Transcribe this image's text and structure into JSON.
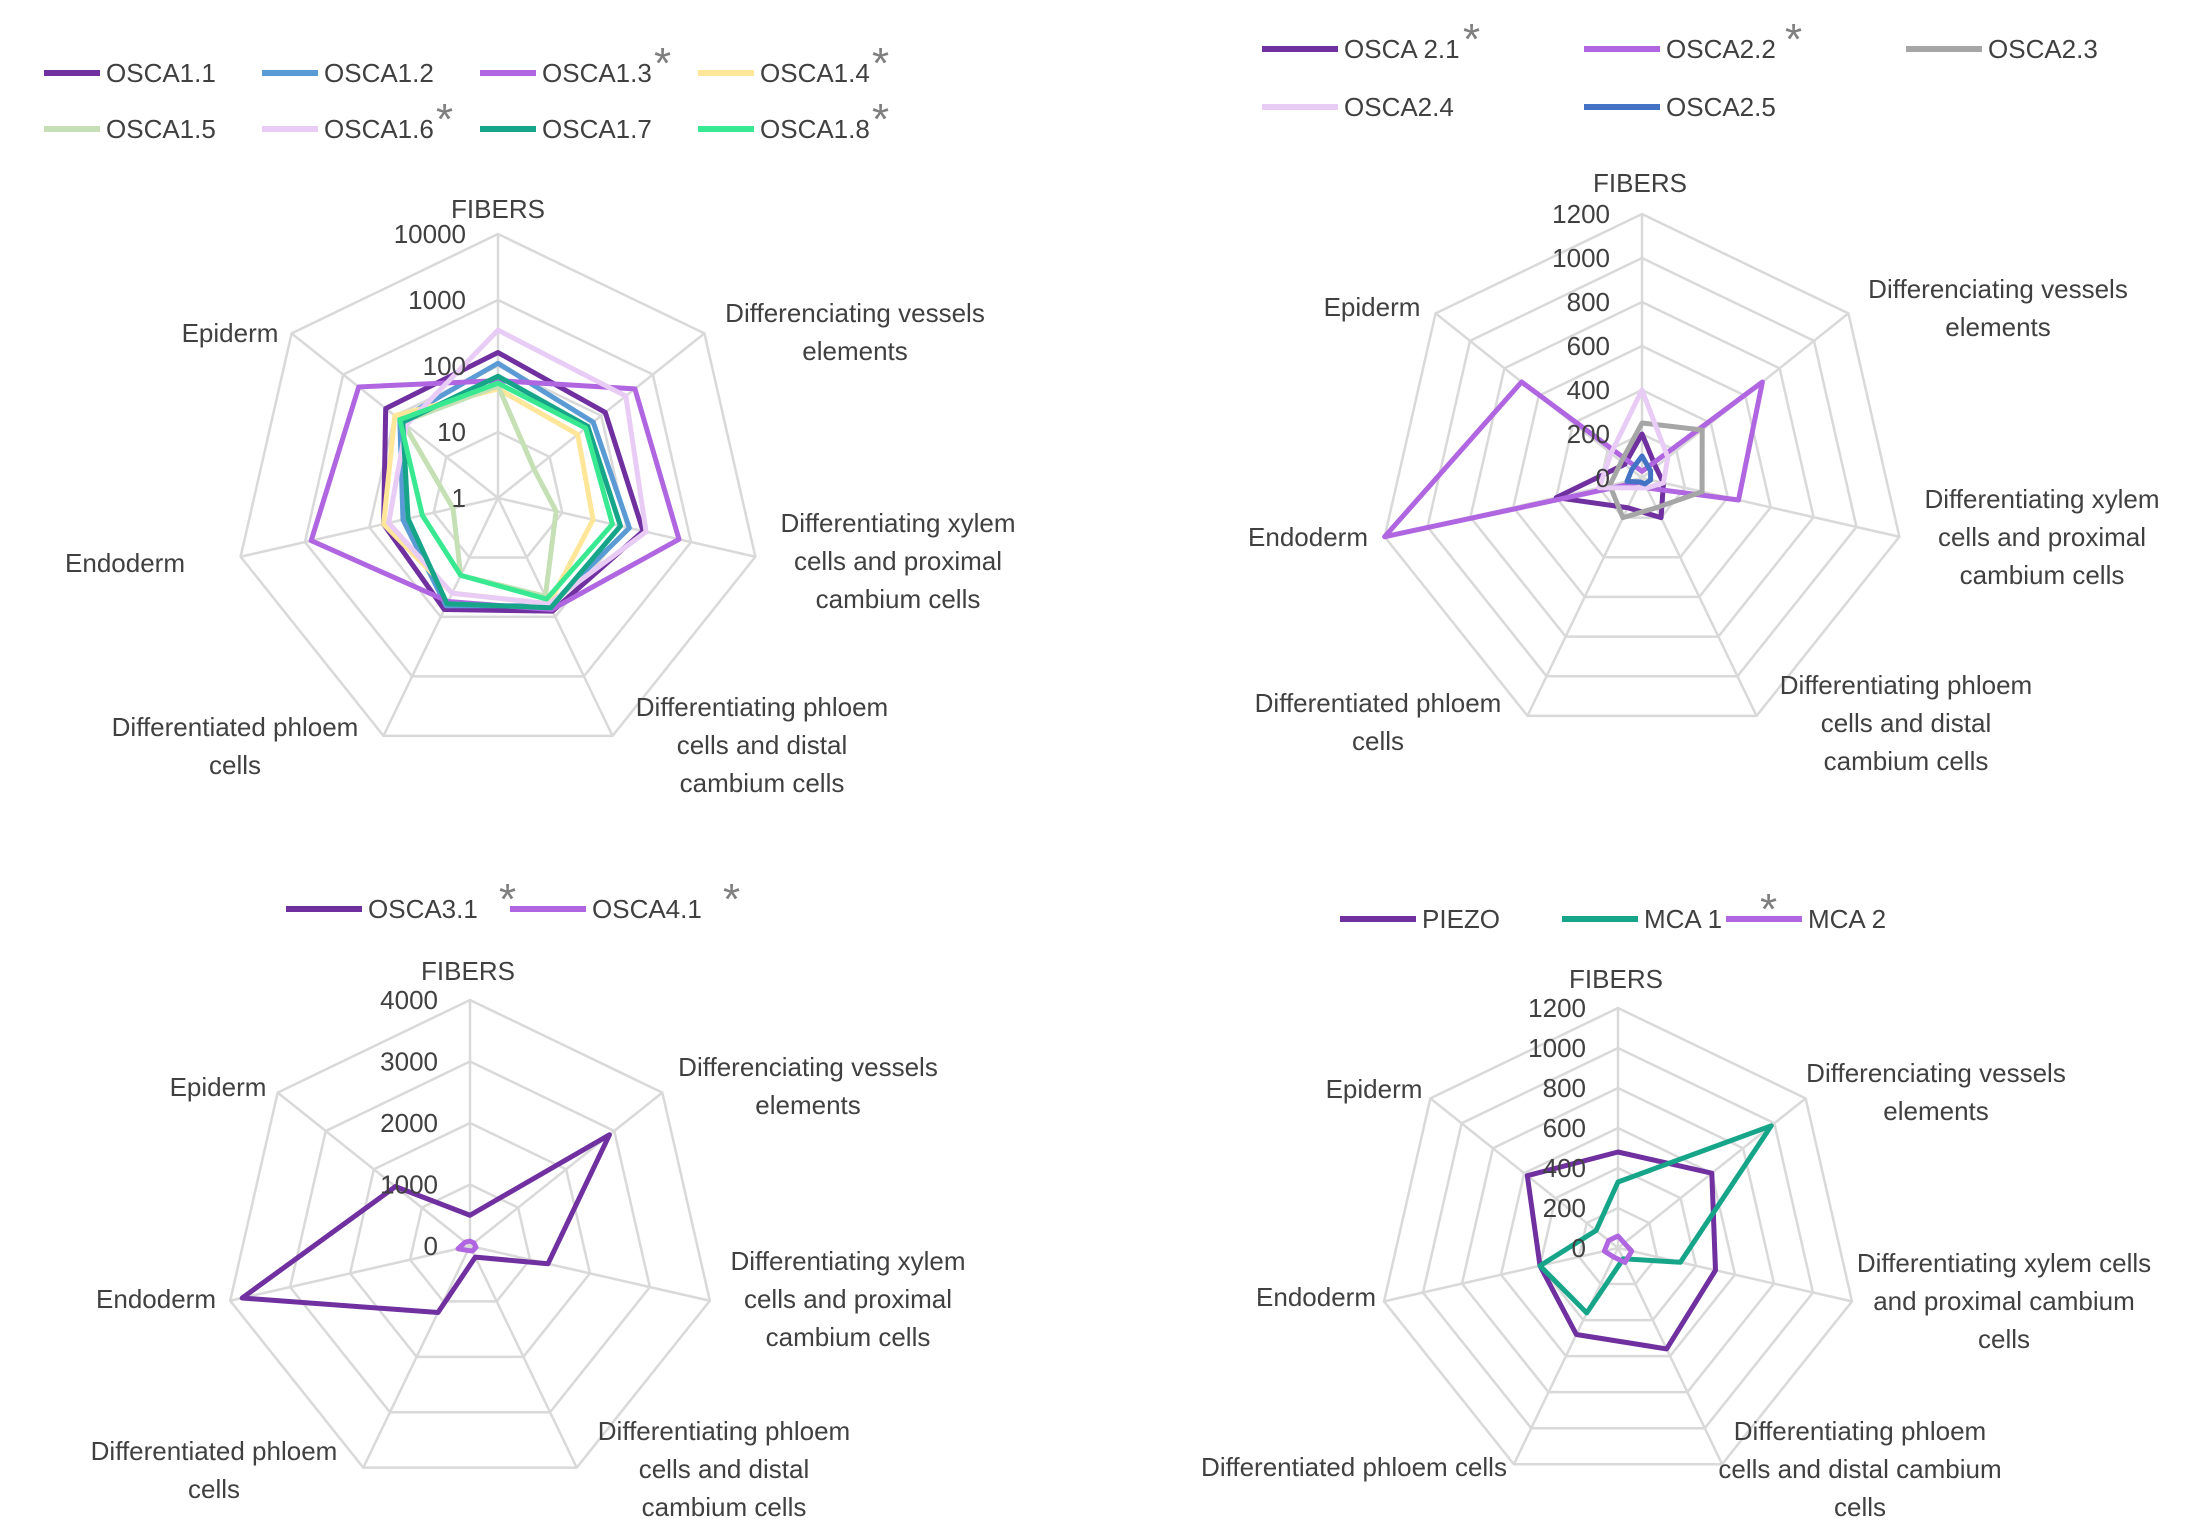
{
  "chart_data": [
    {
      "type": "radar",
      "scale": "log",
      "categories": [
        "FIBERS",
        "Differenciating vessels elements",
        "Differentiating xylem cells and proximal cambium cells",
        "Differentiating phloem cells and distal cambium cells",
        "Differentiated phloem cells",
        "Endoderm",
        "Epiderm"
      ],
      "ticks": [
        "1",
        "10",
        "100",
        "1000",
        "10000"
      ],
      "ylim": [
        1,
        10000
      ],
      "series": [
        {
          "name": "OSCA1.1",
          "color": "#7030a0",
          "starred": false,
          "values": [
            160,
            120,
            180,
            80,
            75,
            60,
            150
          ]
        },
        {
          "name": "OSCA1.2",
          "color": "#5b9bd5",
          "starred": false,
          "values": [
            110,
            70,
            110,
            65,
            65,
            30,
            80
          ]
        },
        {
          "name": "OSCA1.3",
          "color": "#b066e0",
          "starred": true,
          "values": [
            60,
            450,
            650,
            75,
            55,
            800,
            500
          ]
        },
        {
          "name": "OSCA1.4",
          "color": "#ffe699",
          "starred": true,
          "values": [
            45,
            35,
            30,
            60,
            40,
            60,
            100
          ]
        },
        {
          "name": "OSCA1.5",
          "color": "#c5e0b4",
          "starred": false,
          "values": [
            50,
            5,
            8,
            45,
            20,
            5,
            70
          ]
        },
        {
          "name": "OSCA1.6",
          "color": "#e8ccf5",
          "starred": true,
          "values": [
            350,
            300,
            200,
            60,
            40,
            50,
            60
          ]
        },
        {
          "name": "OSCA1.7",
          "color": "#17a589",
          "starred": false,
          "values": [
            70,
            55,
            80,
            70,
            60,
            25,
            70
          ]
        },
        {
          "name": "OSCA1.8",
          "color": "#39e991",
          "starred": true,
          "values": [
            55,
            50,
            60,
            50,
            20,
            15,
            80
          ]
        }
      ]
    },
    {
      "type": "radar",
      "scale": "linear",
      "categories": [
        "FIBERS",
        "Differenciating vessels elements",
        "Differentiating xylem cells and proximal cambium cells",
        "Differentiating phloem cells and distal cambium cells",
        "Differentiated phloem cells",
        "Endoderm",
        "Epiderm"
      ],
      "ticks": [
        "0",
        "200",
        "400",
        "600",
        "800",
        "1000",
        "1200"
      ],
      "ylim": [
        0,
        1200
      ],
      "series": [
        {
          "name": "OSCA 2.1",
          "color": "#7030a0",
          "starred": true,
          "values": [
            200,
            80,
            100,
            200,
            150,
            400,
            100
          ]
        },
        {
          "name": "OSCA2.2",
          "color": "#b066e0",
          "starred": true,
          "values": [
            30,
            700,
            450,
            50,
            20,
            1200,
            700
          ]
        },
        {
          "name": "OSCA2.3",
          "color": "#a6a6a6",
          "starred": false,
          "values": [
            250,
            350,
            280,
            150,
            200,
            150,
            120
          ]
        },
        {
          "name": "OSCA2.4",
          "color": "#e8ccf5",
          "starred": false,
          "values": [
            400,
            150,
            100,
            50,
            50,
            200,
            180
          ]
        },
        {
          "name": "OSCA2.5",
          "color": "#4472c4",
          "starred": false,
          "values": [
            100,
            50,
            40,
            30,
            20,
            70,
            60
          ]
        }
      ]
    },
    {
      "type": "radar",
      "scale": "linear",
      "categories": [
        "FIBERS",
        "Differenciating vessels elements",
        "Differentiating xylem cells and proximal cambium cells",
        "Differentiating phloem cells and distal cambium cells",
        "Differentiated phloem cells",
        "Endoderm",
        "Epiderm"
      ],
      "ticks": [
        "0",
        "1000",
        "2000",
        "3000",
        "4000"
      ],
      "ylim": [
        0,
        4000
      ],
      "series": [
        {
          "name": "OSCA3.1",
          "color": "#7030a0",
          "starred": true,
          "values": [
            500,
            2900,
            1300,
            200,
            1200,
            3800,
            1550
          ]
        },
        {
          "name": "OSCA4.1",
          "color": "#b066e0",
          "starred": true,
          "values": [
            80,
            80,
            100,
            90,
            80,
            200,
            100
          ]
        }
      ]
    },
    {
      "type": "radar",
      "scale": "linear",
      "categories": [
        "FIBERS",
        "Differenciating vessels elements",
        "Differentiating xylem cells and proximal cambium cells",
        "Differentiating phloem cells and distal cambium cells",
        "Differentiated phloem cells",
        "Endoderm",
        "Epiderm"
      ],
      "ticks": [
        "0",
        "200",
        "400",
        "600",
        "800",
        "1000",
        "1200"
      ],
      "ylim": [
        0,
        1200
      ],
      "series": [
        {
          "name": "PIEZO",
          "color": "#7030a0",
          "starred": false,
          "values": [
            480,
            600,
            500,
            560,
            480,
            400,
            580
          ]
        },
        {
          "name": "MCA 1",
          "color": "#17a589",
          "starred": true,
          "values": [
            330,
            980,
            320,
            60,
            360,
            400,
            140
          ]
        },
        {
          "name": "MCA 2",
          "color": "#b066e0",
          "starred": false,
          "values": [
            60,
            40,
            70,
            80,
            50,
            70,
            60
          ]
        }
      ]
    }
  ]
}
